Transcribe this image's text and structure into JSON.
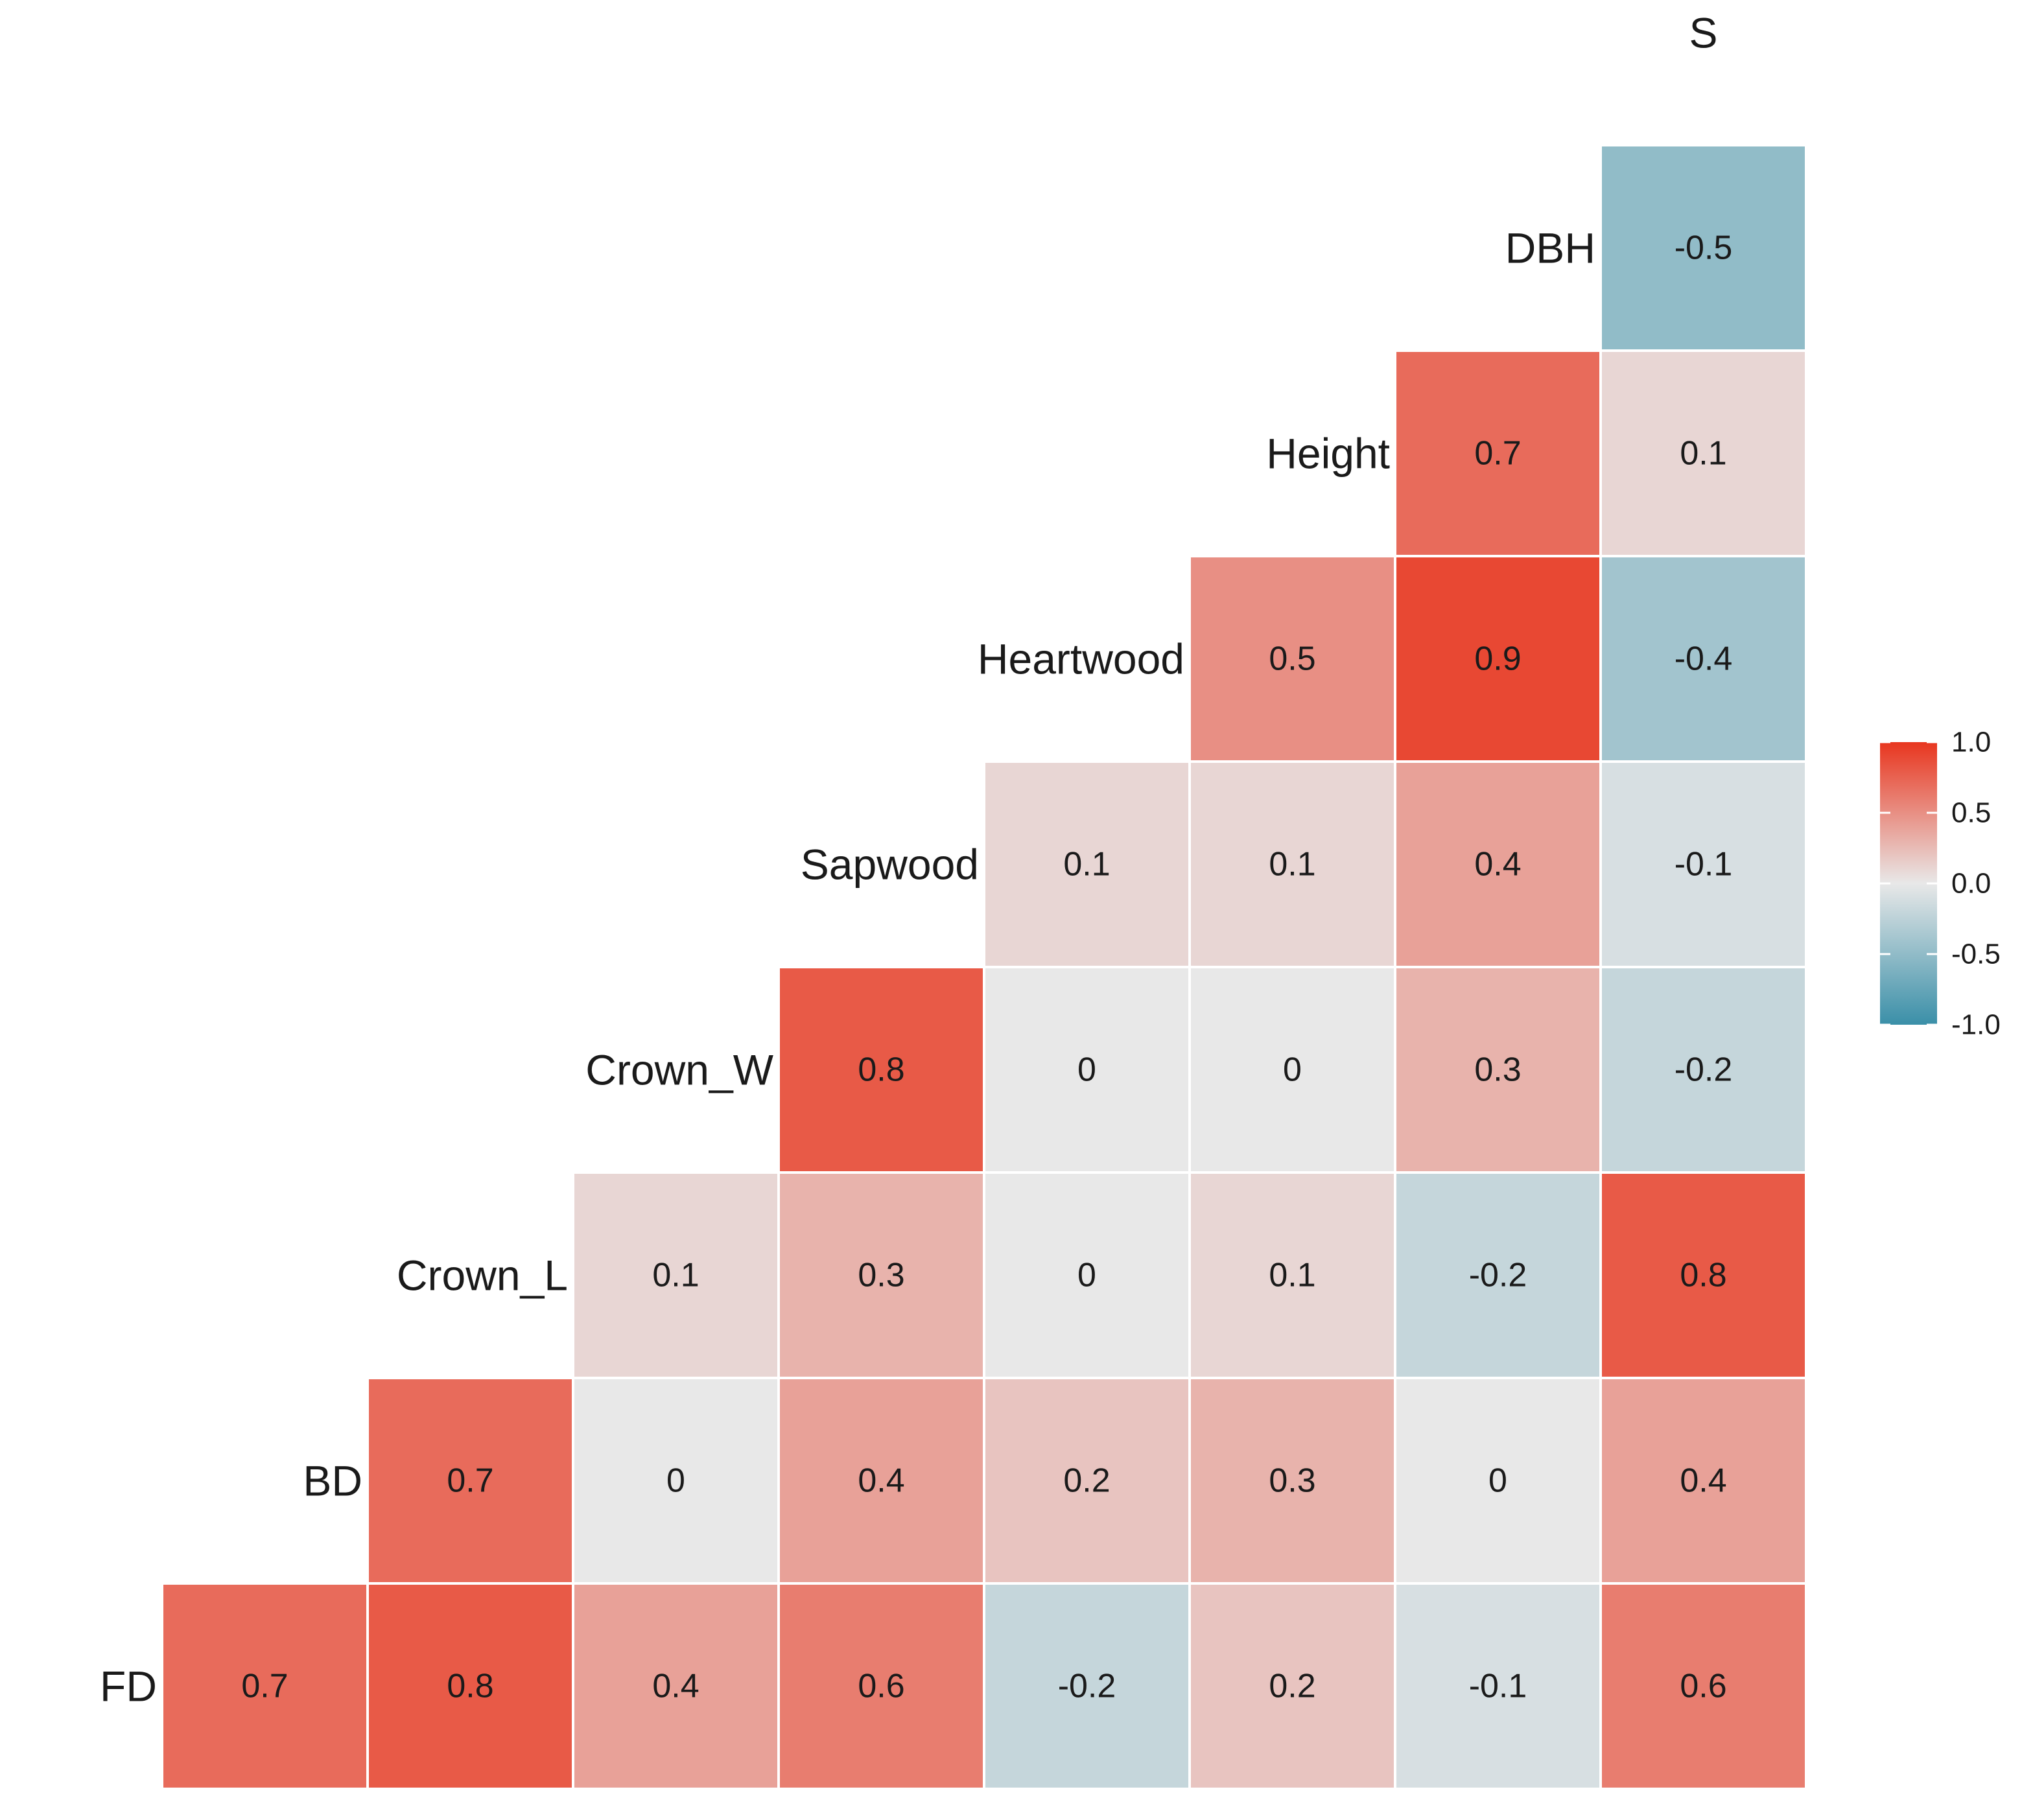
{
  "chart_data": {
    "type": "heatmap",
    "variables": [
      "FD",
      "BD",
      "Crown_L",
      "Crown_W",
      "Sapwood",
      "Heartwood",
      "Height",
      "DBH",
      "S"
    ],
    "matrix": [
      [
        0.7,
        0.8,
        0.4,
        0.6,
        -0.2,
        0.2,
        -0.1,
        0.6
      ],
      [
        0.7,
        0,
        0.4,
        0.2,
        0.3,
        0,
        0.4
      ],
      [
        0.1,
        0.3,
        0,
        0.1,
        -0.2,
        0.8
      ],
      [
        0.8,
        0,
        0,
        0.3,
        -0.2
      ],
      [
        0.1,
        0.1,
        0.4,
        -0.1
      ],
      [
        0.5,
        0.9,
        -0.4
      ],
      [
        0.7,
        0.1
      ],
      [
        -0.5
      ]
    ],
    "matrix_note": "row r = variables[r]; entry c = correlation with variables[r + 1 + c]",
    "color_scale": {
      "min": -1.0,
      "mid": 0.0,
      "max": 1.0,
      "low_color": "#3a8fa8",
      "mid_color": "#e8e8e8",
      "high_color": "#e8361f"
    },
    "legend": {
      "ticks": [
        1.0,
        0.5,
        0.0,
        -0.5,
        -1.0
      ],
      "tick_labels": [
        "1.0",
        "0.5",
        "0.0",
        "-0.5",
        "-1.0"
      ],
      "position": "right"
    }
  }
}
